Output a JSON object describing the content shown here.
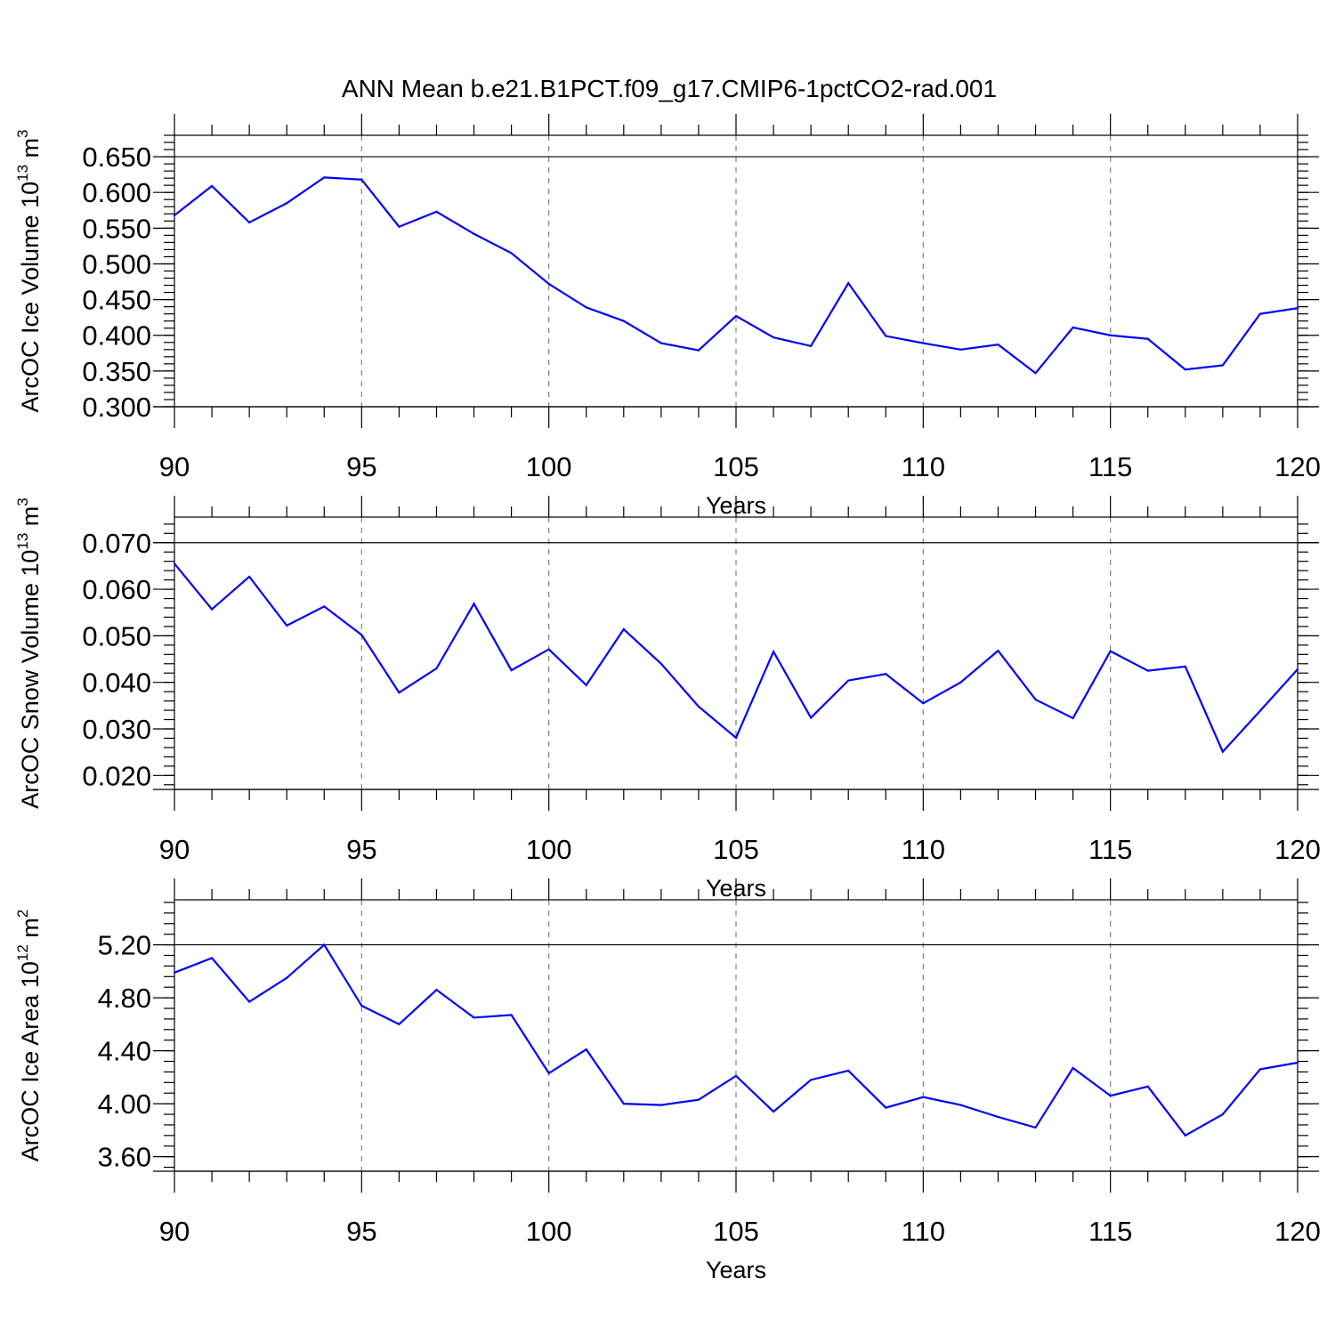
{
  "title": "ANN Mean b.e21.B1PCT.f09_g17.CMIP6-1pctCO2-rad.001",
  "colors": {
    "line": "#0000ff",
    "grid": "#808080",
    "axis": "#000000"
  },
  "chart_data": [
    {
      "type": "line",
      "xlabel": "Years",
      "ylabel_main": "ArcOC Ice Volume 10",
      "ylabel_exp": "13",
      "ylabel_unit": " m",
      "ylabel_unit_exp": "3",
      "xlim": [
        90,
        120
      ],
      "ylim": [
        0.3,
        0.68
      ],
      "grid": true,
      "xticks": [
        90,
        95,
        100,
        105,
        110,
        115,
        120
      ],
      "xtick_labels": [
        "90",
        "95",
        "100",
        "105",
        "110",
        "115",
        "120"
      ],
      "yticks": [
        0.3,
        0.35,
        0.4,
        0.45,
        0.5,
        0.55,
        0.6,
        0.65
      ],
      "ytick_labels": [
        "0.300",
        "0.350",
        "0.400",
        "0.450",
        "0.500",
        "0.550",
        "0.600",
        "0.650"
      ],
      "yminor_step": 0.01,
      "x": [
        90,
        91,
        92,
        93,
        94,
        95,
        96,
        97,
        98,
        99,
        100,
        101,
        102,
        103,
        104,
        105,
        106,
        107,
        108,
        109,
        110,
        111,
        112,
        113,
        114,
        115,
        116,
        117,
        118,
        119,
        120
      ],
      "series": [
        {
          "values": [
            0.568,
            0.609,
            0.558,
            0.585,
            0.621,
            0.618,
            0.552,
            0.573,
            0.542,
            0.515,
            0.472,
            0.439,
            0.42,
            0.389,
            0.379,
            0.427,
            0.397,
            0.385,
            0.473,
            0.399,
            0.389,
            0.38,
            0.387,
            0.347,
            0.411,
            0.4,
            0.395,
            0.352,
            0.358,
            0.43,
            0.438
          ]
        }
      ]
    },
    {
      "type": "line",
      "xlabel": "Years",
      "ylabel_main": "ArcOC Snow Volume 10",
      "ylabel_exp": "13",
      "ylabel_unit": " m",
      "ylabel_unit_exp": "3",
      "xlim": [
        90,
        120
      ],
      "ylim": [
        0.017,
        0.0755
      ],
      "grid": true,
      "xticks": [
        90,
        95,
        100,
        105,
        110,
        115,
        120
      ],
      "xtick_labels": [
        "90",
        "95",
        "100",
        "105",
        "110",
        "115",
        "120"
      ],
      "yticks": [
        0.02,
        0.03,
        0.04,
        0.05,
        0.06,
        0.07
      ],
      "ytick_labels": [
        "0.020",
        "0.030",
        "0.040",
        "0.050",
        "0.060",
        "0.070"
      ],
      "yminor_step": 0.002,
      "x": [
        90,
        91,
        92,
        93,
        94,
        95,
        96,
        97,
        98,
        99,
        100,
        101,
        102,
        103,
        104,
        105,
        106,
        107,
        108,
        109,
        110,
        111,
        112,
        113,
        114,
        115,
        116,
        117,
        118,
        119,
        120
      ],
      "series": [
        {
          "values": [
            0.0655,
            0.0557,
            0.0627,
            0.0522,
            0.0563,
            0.0502,
            0.0378,
            0.043,
            0.0569,
            0.0426,
            0.0471,
            0.0394,
            0.0514,
            0.044,
            0.0348,
            0.0281,
            0.0466,
            0.0324,
            0.0404,
            0.0418,
            0.0355,
            0.04,
            0.0468,
            0.0363,
            0.0323,
            0.0467,
            0.0425,
            0.0434,
            0.0251,
            0.0339,
            0.0428
          ]
        }
      ]
    },
    {
      "type": "line",
      "xlabel": "Years",
      "ylabel_main": "ArcOC Ice Area 10",
      "ylabel_exp": "12",
      "ylabel_unit": " m",
      "ylabel_unit_exp": "2",
      "xlim": [
        90,
        120
      ],
      "ylim": [
        3.49,
        5.54
      ],
      "grid": true,
      "xticks": [
        90,
        95,
        100,
        105,
        110,
        115,
        120
      ],
      "xtick_labels": [
        "90",
        "95",
        "100",
        "105",
        "110",
        "115",
        "120"
      ],
      "yticks": [
        3.6,
        4.0,
        4.4,
        4.8,
        5.2
      ],
      "ytick_labels": [
        "3.60",
        "4.00",
        "4.40",
        "4.80",
        "5.20"
      ],
      "yminor_step": 0.08,
      "x": [
        90,
        91,
        92,
        93,
        94,
        95,
        96,
        97,
        98,
        99,
        100,
        101,
        102,
        103,
        104,
        105,
        106,
        107,
        108,
        109,
        110,
        111,
        112,
        113,
        114,
        115,
        116,
        117,
        118,
        119,
        120
      ],
      "series": [
        {
          "values": [
            4.99,
            5.1,
            4.77,
            4.95,
            5.2,
            4.74,
            4.6,
            4.86,
            4.65,
            4.67,
            4.23,
            4.41,
            4.0,
            3.99,
            4.03,
            4.21,
            3.94,
            4.18,
            4.25,
            3.97,
            4.05,
            3.99,
            3.9,
            3.82,
            4.27,
            4.06,
            4.13,
            3.76,
            3.92,
            4.26,
            4.31
          ]
        }
      ]
    }
  ]
}
